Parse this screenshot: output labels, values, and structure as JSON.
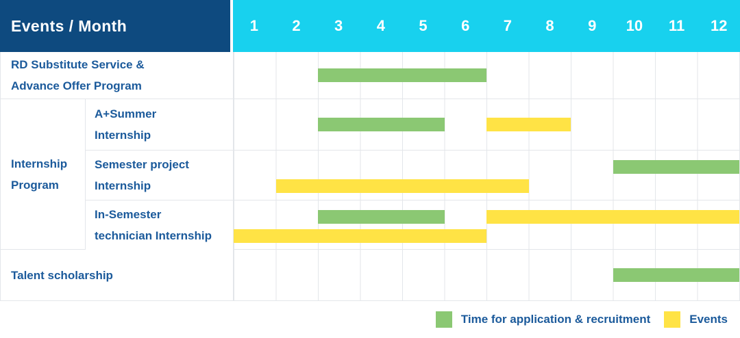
{
  "header": {
    "title": "Events / Month",
    "months": [
      "1",
      "2",
      "3",
      "4",
      "5",
      "6",
      "7",
      "8",
      "9",
      "10",
      "11",
      "12"
    ]
  },
  "colors": {
    "green": "#8bc873",
    "yellow": "#ffe345",
    "header_dark": "#0e4a7f",
    "header_cyan": "#18d1ee",
    "text_blue": "#1b5a9b",
    "grid_line": "#e3e6ea"
  },
  "legend": {
    "items": [
      {
        "key": "green",
        "label": "Time for application & recruitment"
      },
      {
        "key": "yellow",
        "label": "Events"
      }
    ]
  },
  "chart_data": {
    "type": "bar",
    "subtype": "gantt-timeline",
    "title": "Events / Month",
    "x": {
      "label": "Month",
      "ticks": [
        "1",
        "2",
        "3",
        "4",
        "5",
        "6",
        "7",
        "8",
        "9",
        "10",
        "11",
        "12"
      ],
      "range": [
        1,
        12
      ]
    },
    "series_legend": [
      {
        "name": "Time for application & recruitment",
        "color": "green"
      },
      {
        "name": "Events",
        "color": "yellow"
      }
    ],
    "group_label": "Internship Program",
    "group_label_lines": [
      "Internship",
      "Program"
    ],
    "rows": [
      {
        "label": "RD Substitute Service & Advance Offer Program",
        "label_lines": [
          "RD Substitute Service &",
          "Advance Offer Program"
        ],
        "group": null,
        "bars": [
          {
            "series": "Time for application & recruitment",
            "color": "green",
            "start_month": 3,
            "end_month": 6,
            "lane": "single"
          }
        ]
      },
      {
        "label": "A+Summer Internship",
        "label_lines": [
          "A+Summer",
          "Internship"
        ],
        "group": "Internship Program",
        "bars": [
          {
            "series": "Time for application & recruitment",
            "color": "green",
            "start_month": 3,
            "end_month": 5,
            "lane": "single"
          },
          {
            "series": "Events",
            "color": "yellow",
            "start_month": 7,
            "end_month": 8,
            "lane": "single"
          }
        ]
      },
      {
        "label": "Semester project Internship",
        "label_lines": [
          "Semester project",
          "Internship"
        ],
        "group": "Internship Program",
        "bars": [
          {
            "series": "Time for application & recruitment",
            "color": "green",
            "start_month": 10,
            "end_month": 12,
            "lane": "top"
          },
          {
            "series": "Events",
            "color": "yellow",
            "start_month": 2,
            "end_month": 7,
            "lane": "bottom"
          }
        ]
      },
      {
        "label": "In-Semester technician Internship",
        "label_lines": [
          "In-Semester",
          "technician Internship"
        ],
        "group": "Internship Program",
        "bars": [
          {
            "series": "Time for application & recruitment",
            "color": "green",
            "start_month": 3,
            "end_month": 5,
            "lane": "top"
          },
          {
            "series": "Events",
            "color": "yellow",
            "start_month": 7,
            "end_month": 12,
            "lane": "top"
          },
          {
            "series": "Events",
            "color": "yellow",
            "start_month": 1,
            "end_month": 6,
            "lane": "bottom"
          }
        ]
      },
      {
        "label": "Talent scholarship",
        "label_lines": [
          "Talent scholarship"
        ],
        "group": null,
        "bars": [
          {
            "series": "Time for application & recruitment",
            "color": "green",
            "start_month": 10,
            "end_month": 12,
            "lane": "single"
          }
        ]
      }
    ]
  }
}
